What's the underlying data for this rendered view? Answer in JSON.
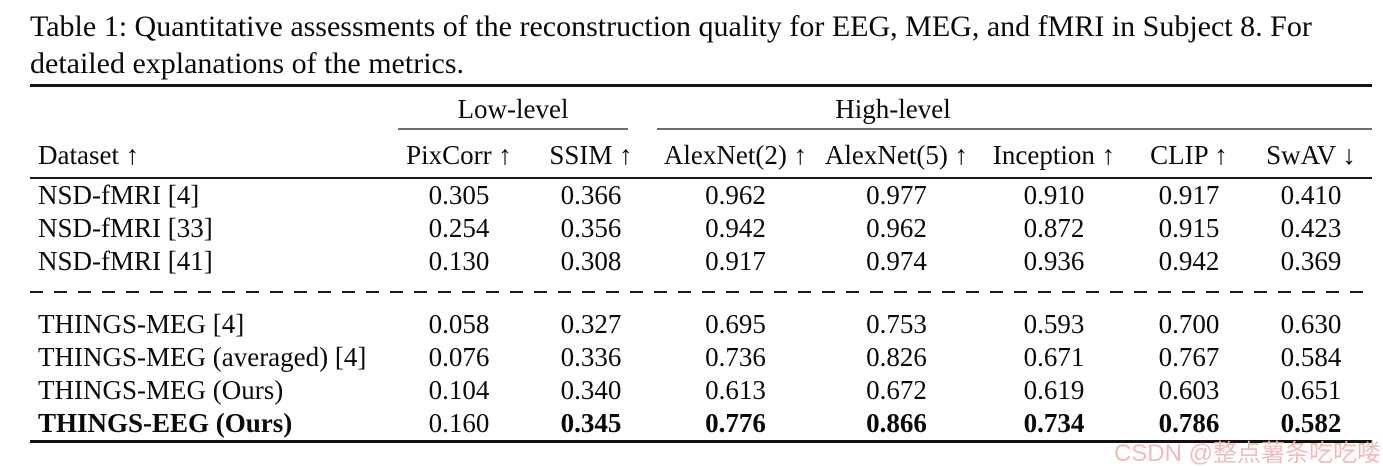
{
  "caption": {
    "text": "Table 1: Quantitative assessments of the reconstruction quality for EEG, MEG, and fMRI in Subject 8. For detailed explanations of the metrics."
  },
  "table": {
    "group_headers": {
      "low": "Low-level",
      "high": "High-level"
    },
    "columns": {
      "dataset": "Dataset ↑",
      "pixcorr": "PixCorr ↑",
      "ssim": "SSIM ↑",
      "alexnet2": "AlexNet(2) ↑",
      "alexnet5": "AlexNet(5) ↑",
      "inception": "Inception ↑",
      "clip": "CLIP ↑",
      "swav": "SwAV ↓"
    },
    "rows": [
      {
        "cells": [
          "NSD-fMRI [4]",
          "0.305",
          "0.366",
          "0.962",
          "0.977",
          "0.910",
          "0.917",
          "0.410"
        ]
      },
      {
        "cells": [
          "NSD-fMRI [33]",
          "0.254",
          "0.356",
          "0.942",
          "0.962",
          "0.872",
          "0.915",
          "0.423"
        ]
      },
      {
        "cells": [
          "NSD-fMRI [41]",
          "0.130",
          "0.308",
          "0.917",
          "0.974",
          "0.936",
          "0.942",
          "0.369"
        ]
      },
      {
        "cells": [
          "THINGS-MEG [4]",
          "0.058",
          "0.327",
          "0.695",
          "0.753",
          "0.593",
          "0.700",
          "0.630"
        ]
      },
      {
        "cells": [
          "THINGS-MEG (averaged) [4]",
          "0.076",
          "0.336",
          "0.736",
          "0.826",
          "0.671",
          "0.767",
          "0.584"
        ]
      },
      {
        "cells": [
          "THINGS-MEG (Ours)",
          "0.104",
          "0.340",
          "0.613",
          "0.672",
          "0.619",
          "0.603",
          "0.651"
        ]
      },
      {
        "cells": [
          "THINGS-EEG (Ours)",
          "0.160",
          "0.345",
          "0.776",
          "0.866",
          "0.734",
          "0.786",
          "0.582"
        ]
      }
    ]
  },
  "watermark": {
    "text": "CSDN @整点薯条吃吃喽",
    "color": "#f0b9b6"
  }
}
